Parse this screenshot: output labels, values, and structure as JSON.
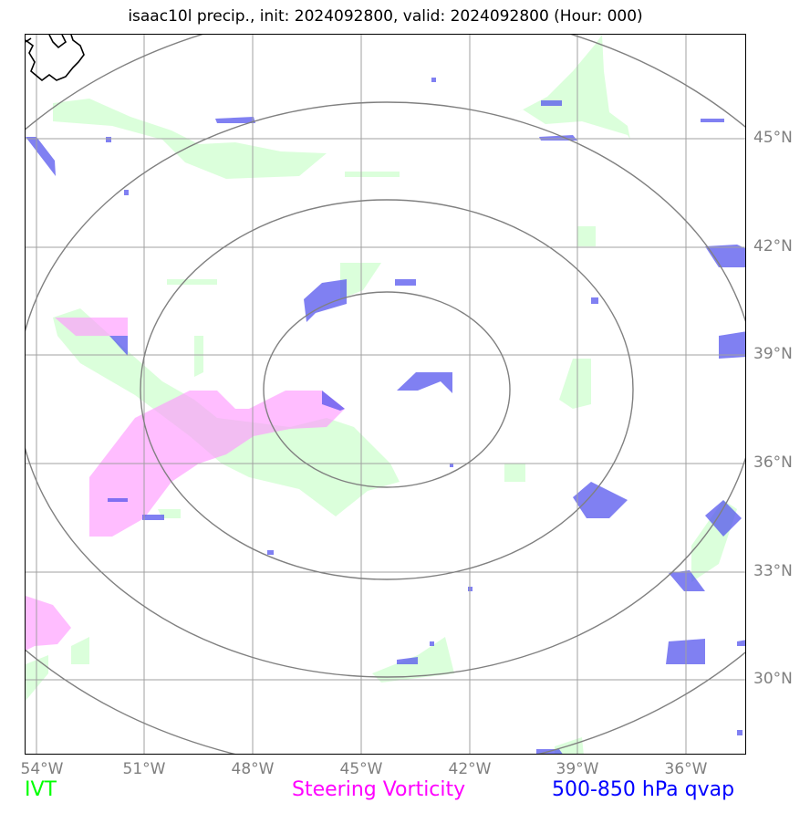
{
  "title": "isaac10l precip., init: 2024092800, valid: 2024092800 (Hour: 000)",
  "map": {
    "lon_ticks": [
      "54°W",
      "51°W",
      "48°W",
      "45°W",
      "42°W",
      "39°W",
      "36°W"
    ],
    "lat_ticks": [
      "45°N",
      "42°N",
      "39°N",
      "36°N",
      "33°N",
      "30°N"
    ],
    "lon_range": [
      -54.3,
      -34.2
    ],
    "lat_range": [
      28.0,
      48.0
    ],
    "storm_center": {
      "lon": -44.3,
      "lat": 38.0
    },
    "range_rings": 4,
    "gridlines": true
  },
  "legend": [
    {
      "label": "IVT",
      "color": "#00ff00"
    },
    {
      "label": "Steering Vorticity",
      "color": "#ff00ff"
    },
    {
      "label": "500-850 hPa qvap",
      "color": "#0000ff"
    }
  ],
  "fill_colors": {
    "ivt": "#ccffcc",
    "vorticity": "#ff99ff",
    "qvap": "#5555ee"
  }
}
